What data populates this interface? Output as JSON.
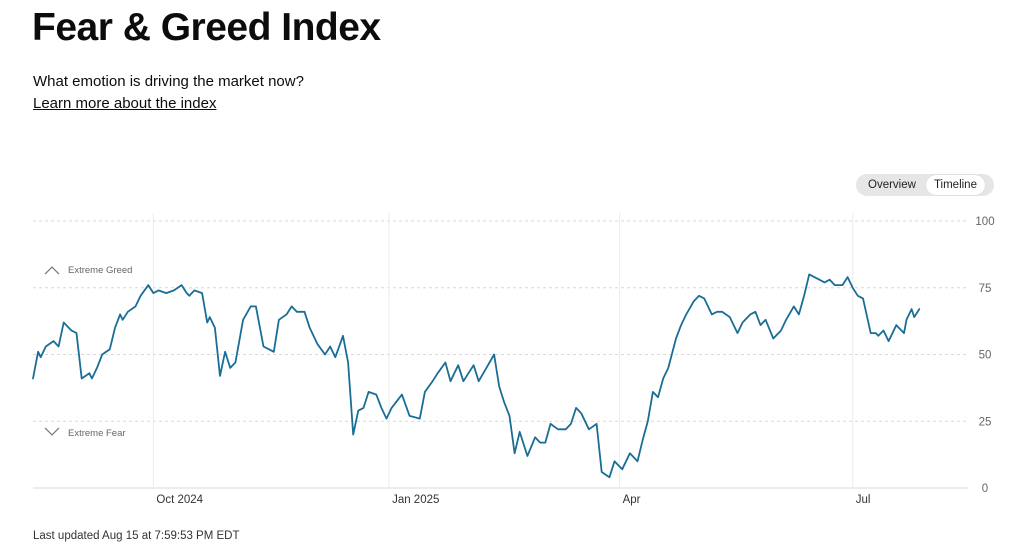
{
  "header": {
    "title": "Fear & Greed Index",
    "subtitle": "What emotion is driving the market now?",
    "learn_more": "Learn more about the index"
  },
  "toggle": {
    "overview_label": "Overview",
    "timeline_label": "Timeline",
    "selected": "Timeline"
  },
  "footer": {
    "updated": "Last updated Aug 15 at 7:59:53 PM EDT"
  },
  "colors": {
    "line": "#1a6e95",
    "grid": "#d9d9d9",
    "text": "#0c0c0c",
    "muted": "#666666"
  },
  "chart_data": {
    "type": "line",
    "title": "",
    "xlabel": "",
    "ylabel": "",
    "ylim": [
      0,
      100
    ],
    "xlim": [
      "2024-08-15",
      "2025-08-15"
    ],
    "y_ticks": [
      100,
      75,
      50,
      25,
      0
    ],
    "x_ticks": [
      {
        "date": "2024-10-01",
        "label": "Oct 2024"
      },
      {
        "date": "2025-01-01",
        "label": "Jan 2025"
      },
      {
        "date": "2025-04-01",
        "label": "Apr"
      },
      {
        "date": "2025-07-01",
        "label": "Jul"
      }
    ],
    "grid": "dashed horizontal and vertical",
    "annotations": [
      {
        "label": "Extreme Greed",
        "icon": "chevron-up-icon",
        "y": 82
      },
      {
        "label": "Extreme Fear",
        "icon": "chevron-down-icon",
        "y": 21
      }
    ],
    "series": [
      {
        "points": [
          [
            "2024-08-15",
            41
          ],
          [
            "2024-08-17",
            51
          ],
          [
            "2024-08-18",
            49
          ],
          [
            "2024-08-20",
            53
          ],
          [
            "2024-08-23",
            55
          ],
          [
            "2024-08-25",
            53
          ],
          [
            "2024-08-27",
            62
          ],
          [
            "2024-08-30",
            59
          ],
          [
            "2024-09-01",
            58
          ],
          [
            "2024-09-03",
            41
          ],
          [
            "2024-09-06",
            43
          ],
          [
            "2024-09-07",
            41
          ],
          [
            "2024-09-09",
            45
          ],
          [
            "2024-09-11",
            50
          ],
          [
            "2024-09-14",
            52
          ],
          [
            "2024-09-16",
            60
          ],
          [
            "2024-09-18",
            65
          ],
          [
            "2024-09-19",
            63
          ],
          [
            "2024-09-21",
            66
          ],
          [
            "2024-09-24",
            68
          ],
          [
            "2024-09-26",
            72
          ],
          [
            "2024-09-29",
            76
          ],
          [
            "2024-10-01",
            73
          ],
          [
            "2024-10-03",
            74
          ],
          [
            "2024-10-06",
            73
          ],
          [
            "2024-10-09",
            74
          ],
          [
            "2024-10-12",
            76
          ],
          [
            "2024-10-14",
            73
          ],
          [
            "2024-10-15",
            72
          ],
          [
            "2024-10-17",
            74
          ],
          [
            "2024-10-20",
            73
          ],
          [
            "2024-10-22",
            62
          ],
          [
            "2024-10-23",
            64
          ],
          [
            "2024-10-25",
            60
          ],
          [
            "2024-10-27",
            42
          ],
          [
            "2024-10-29",
            51
          ],
          [
            "2024-10-31",
            45
          ],
          [
            "2024-11-02",
            47
          ],
          [
            "2024-11-05",
            63
          ],
          [
            "2024-11-08",
            68
          ],
          [
            "2024-11-10",
            68
          ],
          [
            "2024-11-13",
            53
          ],
          [
            "2024-11-15",
            52
          ],
          [
            "2024-11-17",
            51
          ],
          [
            "2024-11-19",
            63
          ],
          [
            "2024-11-22",
            65
          ],
          [
            "2024-11-24",
            68
          ],
          [
            "2024-11-26",
            66
          ],
          [
            "2024-11-29",
            66
          ],
          [
            "2024-12-01",
            60
          ],
          [
            "2024-12-04",
            54
          ],
          [
            "2024-12-07",
            50
          ],
          [
            "2024-12-09",
            53
          ],
          [
            "2024-12-11",
            49
          ],
          [
            "2024-12-14",
            57
          ],
          [
            "2024-12-16",
            47
          ],
          [
            "2024-12-18",
            20
          ],
          [
            "2024-12-20",
            29
          ],
          [
            "2024-12-22",
            30
          ],
          [
            "2024-12-24",
            36
          ],
          [
            "2024-12-27",
            35
          ],
          [
            "2024-12-29",
            30
          ],
          [
            "2024-12-31",
            26
          ],
          [
            "2025-01-02",
            30
          ],
          [
            "2025-01-06",
            35
          ],
          [
            "2025-01-09",
            27
          ],
          [
            "2025-01-13",
            26
          ],
          [
            "2025-01-15",
            36
          ],
          [
            "2025-01-18",
            40
          ],
          [
            "2025-01-20",
            43
          ],
          [
            "2025-01-23",
            47
          ],
          [
            "2025-01-25",
            40
          ],
          [
            "2025-01-28",
            46
          ],
          [
            "2025-01-30",
            40
          ],
          [
            "2025-02-01",
            43
          ],
          [
            "2025-02-03",
            46
          ],
          [
            "2025-02-05",
            40
          ],
          [
            "2025-02-08",
            45
          ],
          [
            "2025-02-11",
            50
          ],
          [
            "2025-02-13",
            38
          ],
          [
            "2025-02-15",
            32
          ],
          [
            "2025-02-17",
            27
          ],
          [
            "2025-02-19",
            13
          ],
          [
            "2025-02-21",
            21
          ],
          [
            "2025-02-24",
            12
          ],
          [
            "2025-02-27",
            19
          ],
          [
            "2025-03-01",
            17
          ],
          [
            "2025-03-03",
            17
          ],
          [
            "2025-03-05",
            24
          ],
          [
            "2025-03-08",
            22
          ],
          [
            "2025-03-11",
            22
          ],
          [
            "2025-03-13",
            24
          ],
          [
            "2025-03-15",
            30
          ],
          [
            "2025-03-17",
            28
          ],
          [
            "2025-03-20",
            22
          ],
          [
            "2025-03-23",
            24
          ],
          [
            "2025-03-25",
            6
          ],
          [
            "2025-03-28",
            4
          ],
          [
            "2025-03-30",
            10
          ],
          [
            "2025-04-02",
            7
          ],
          [
            "2025-04-05",
            13
          ],
          [
            "2025-04-08",
            10
          ],
          [
            "2025-04-10",
            18
          ],
          [
            "2025-04-12",
            25
          ],
          [
            "2025-04-14",
            36
          ],
          [
            "2025-04-16",
            34
          ],
          [
            "2025-04-18",
            41
          ],
          [
            "2025-04-20",
            45
          ],
          [
            "2025-04-23",
            56
          ],
          [
            "2025-04-25",
            61
          ],
          [
            "2025-04-27",
            65
          ],
          [
            "2025-04-30",
            70
          ],
          [
            "2025-05-02",
            72
          ],
          [
            "2025-05-04",
            71
          ],
          [
            "2025-05-07",
            65
          ],
          [
            "2025-05-09",
            66
          ],
          [
            "2025-05-11",
            66
          ],
          [
            "2025-05-14",
            64
          ],
          [
            "2025-05-17",
            58
          ],
          [
            "2025-05-19",
            62
          ],
          [
            "2025-05-22",
            65
          ],
          [
            "2025-05-24",
            66
          ],
          [
            "2025-05-26",
            61
          ],
          [
            "2025-05-28",
            63
          ],
          [
            "2025-05-31",
            56
          ],
          [
            "2025-06-03",
            59
          ],
          [
            "2025-06-05",
            63
          ],
          [
            "2025-06-08",
            68
          ],
          [
            "2025-06-10",
            65
          ],
          [
            "2025-06-12",
            72
          ],
          [
            "2025-06-14",
            80
          ],
          [
            "2025-06-16",
            79
          ],
          [
            "2025-06-18",
            78
          ],
          [
            "2025-06-20",
            77
          ],
          [
            "2025-06-22",
            78
          ],
          [
            "2025-06-24",
            76
          ],
          [
            "2025-06-27",
            76
          ],
          [
            "2025-06-29",
            79
          ],
          [
            "2025-07-01",
            75
          ],
          [
            "2025-07-03",
            72
          ],
          [
            "2025-07-05",
            71
          ],
          [
            "2025-07-08",
            58
          ],
          [
            "2025-07-10",
            58
          ],
          [
            "2025-07-11",
            57
          ],
          [
            "2025-07-13",
            59
          ],
          [
            "2025-07-15",
            55
          ],
          [
            "2025-07-16",
            57
          ],
          [
            "2025-07-18",
            61
          ],
          [
            "2025-07-19",
            60
          ],
          [
            "2025-07-21",
            58
          ],
          [
            "2025-07-22",
            63
          ],
          [
            "2025-07-24",
            67
          ],
          [
            "2025-07-25",
            64
          ],
          [
            "2025-07-27",
            67
          ]
        ]
      }
    ]
  }
}
